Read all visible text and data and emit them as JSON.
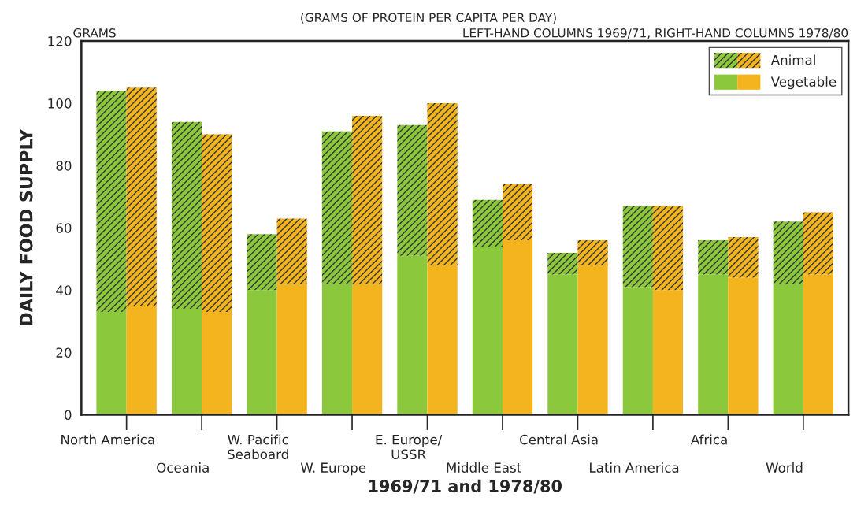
{
  "chart_data": {
    "type": "bar",
    "stacked": true,
    "title": "(GRAMS OF PROTEIN PER CAPITA PER DAY)",
    "subtitle": "LEFT-HAND COLUMNS 1969/71, RIGHT-HAND COLUMNS 1978/80",
    "annotations": [
      "GRAMS"
    ],
    "ylabel": "DAILY FOOD SUPPLY",
    "xlabel": "1969/71 and 1978/80",
    "categories": [
      "North America",
      null,
      "Oceania",
      null,
      "W. Pacific\nSeaboard",
      null,
      "W. Europe",
      null,
      "E. Europe/\nUSSR",
      null,
      "Middle East",
      null,
      "Central Asia",
      null,
      "Latin America",
      null,
      "Africa",
      null,
      "World",
      null
    ],
    "series": [
      {
        "name": "Vegetable",
        "colors": [
          "#8cc83c",
          "#f4b41e",
          "#8cc83c",
          "#f4b41e",
          "#8cc83c",
          "#f4b41e",
          "#8cc83c",
          "#f4b41e",
          "#8cc83c",
          "#f4b41e",
          "#8cc83c",
          "#f4b41e",
          "#8cc83c",
          "#f4b41e",
          "#8cc83c",
          "#f4b41e",
          "#8cc83c",
          "#f4b41e",
          "#8cc83c",
          "#f4b41e"
        ],
        "values": [
          33,
          35,
          34,
          33,
          40,
          42,
          42,
          42,
          51,
          48,
          54,
          56,
          45,
          48,
          41,
          40,
          45,
          44,
          42,
          45
        ]
      },
      {
        "name": "Animal",
        "colors": [
          "#8cc83c",
          "#f4b41e",
          "#8cc83c",
          "#f4b41e",
          "#8cc83c",
          "#f4b41e",
          "#8cc83c",
          "#f4b41e",
          "#8cc83c",
          "#f4b41e",
          "#8cc83c",
          "#f4b41e",
          "#8cc83c",
          "#f4b41e",
          "#8cc83c",
          "#f4b41e",
          "#8cc83c",
          "#f4b41e",
          "#8cc83c",
          "#f4b41e"
        ],
        "values": [
          71,
          70,
          60,
          57,
          18,
          21,
          49,
          54,
          42,
          52,
          15,
          18,
          7,
          8,
          26,
          27,
          11,
          13,
          20,
          20
        ]
      }
    ],
    "ylim": [
      0,
      120
    ],
    "yticks": [
      0,
      20,
      40,
      60,
      80,
      100,
      120
    ],
    "grid": false,
    "legend": "top right"
  }
}
